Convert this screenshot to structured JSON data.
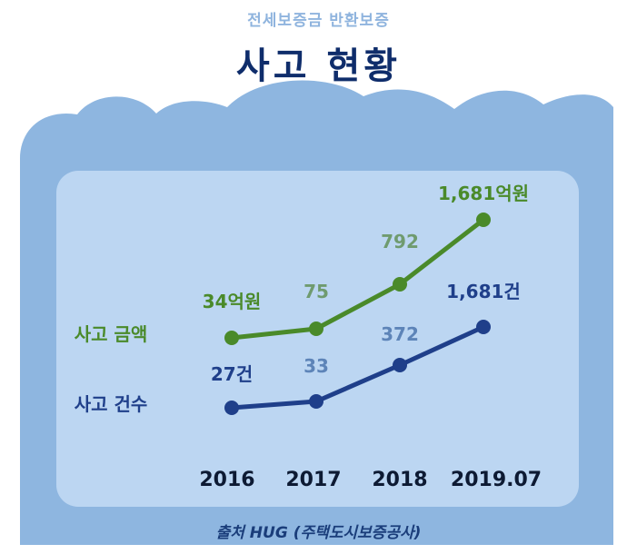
{
  "header": {
    "subtitle": "전세보증금 반환보증",
    "title": "사고 현황"
  },
  "footer": {
    "source": "출처 HUG (주택도시보증공사)"
  },
  "colors": {
    "background_cloud": "#8eb6e0",
    "panel": "#bcd6f2",
    "amount_series": "#4a8a2a",
    "amount_labels_light": "#6f9b6f",
    "count_series": "#1f3f8a",
    "count_labels_light": "#5d84b8",
    "title": "#0f2d6b"
  },
  "chart_data": {
    "type": "line",
    "categories": [
      "2016",
      "2017",
      "2018",
      "2019.07"
    ],
    "series": [
      {
        "name": "사고 금액",
        "values": [
          34,
          75,
          792,
          1681
        ],
        "data_labels": [
          "34억원",
          "75",
          "792",
          "1,681억원"
        ]
      },
      {
        "name": "사고 건수",
        "values": [
          27,
          33,
          372,
          1681
        ],
        "data_labels": [
          "27건",
          "33",
          "372",
          "1,681건"
        ]
      }
    ],
    "xlabel": "",
    "ylabel": ""
  }
}
